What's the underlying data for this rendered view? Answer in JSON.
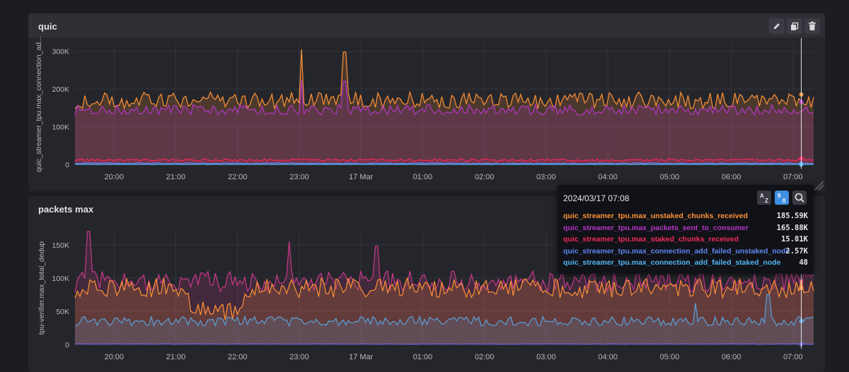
{
  "panels": [
    {
      "title": "quic",
      "ylabel": "quic_streamer_tpu.max_connection_ad...",
      "buttons": [
        {
          "name": "edit-button",
          "icon": "pencil-icon"
        },
        {
          "name": "duplicate-button",
          "icon": "copy-icon"
        },
        {
          "name": "delete-button",
          "icon": "trash-icon"
        }
      ]
    },
    {
      "title": "packets max",
      "ylabel": "tpu-verifier.max_total_dedup"
    }
  ],
  "tooltip": {
    "time": "2024/03/17 07:08",
    "sort_az_label": "AZ",
    "sort_num_label": "90",
    "rows": [
      {
        "name": "quic_streamer_tpu.max_unstaked_chunks_received",
        "value": "185.59K",
        "color": "#ff9236"
      },
      {
        "name": "quic_streamer_tpu.max_packets_sent_to_consumer",
        "value": "165.88K",
        "color": "#b536c7"
      },
      {
        "name": "quic_streamer_tpu.max_staked_chunks_received",
        "value": "15.81K",
        "color": "#f2295a"
      },
      {
        "name": "quic_streamer_tpu.max_connection_add_failed_unstaked_node",
        "value": "2.57K",
        "color": "#5f86f0"
      },
      {
        "name": "quic_streamer_tpu.max_connection_add_failed_staked_node",
        "value": "48",
        "color": "#52b6f5"
      }
    ]
  },
  "chart_data": [
    {
      "type": "area",
      "x_ticks": [
        "20:00",
        "21:00",
        "22:00",
        "23:00",
        "17 Mar",
        "01:00",
        "02:00",
        "03:00",
        "04:00",
        "05:00",
        "06:00",
        "07:00"
      ],
      "x_range": [
        "2024/03/16 19:22",
        "2024/03/17 07:20"
      ],
      "y_ticks": [
        "0",
        "100K",
        "200K",
        "300K"
      ],
      "ylim": [
        0,
        320000
      ],
      "ylabel": "quic_streamer_tpu.max_connection_ad...",
      "grid": true,
      "hover_time": "2024/03/17 07:08",
      "series": [
        {
          "name": "quic_streamer_tpu.max_unstaked_chunks_received",
          "color": "#ff9236",
          "base": 170000,
          "noise": 22000,
          "spikes": [
            [
              "23:02",
              305000
            ],
            [
              "23:45",
              298000
            ]
          ],
          "hover_value": 185590
        },
        {
          "name": "quic_streamer_tpu.max_packets_sent_to_consumer",
          "color": "#b536c7",
          "base": 145000,
          "noise": 14000,
          "spikes": [
            [
              "23:02",
              225000
            ],
            [
              "23:45",
              220000
            ]
          ],
          "hover_value": 165880
        },
        {
          "name": "quic_streamer_tpu.max_staked_chunks_received",
          "color": "#f2295a",
          "base": 12000,
          "noise": 3000,
          "hover_value": 15810
        },
        {
          "name": "quic_streamer_tpu.max_connection_add_failed_unstaked_node",
          "color": "#5f86f0",
          "base": 3000,
          "noise": 1500,
          "hover_value": 2570
        },
        {
          "name": "quic_streamer_tpu.max_connection_add_failed_staked_node",
          "color": "#52b6f5",
          "base": 200,
          "noise": 150,
          "hover_value": 48
        }
      ]
    },
    {
      "type": "area",
      "x_ticks": [
        "20:00",
        "21:00",
        "22:00",
        "23:00",
        "17 Mar",
        "01:00",
        "02:00",
        "03:00",
        "04:00",
        "05:00",
        "06:00",
        "07:00"
      ],
      "x_range": [
        "2024/03/16 19:22",
        "2024/03/17 07:20"
      ],
      "y_ticks": [
        "0",
        "50K",
        "100K",
        "150K"
      ],
      "ylim": [
        0,
        170000
      ],
      "ylabel": "tpu-verifier.max_total_dedup",
      "grid": true,
      "hover_time": "2024/03/17 07:08",
      "series": [
        {
          "color": "#c7398a",
          "base": 95000,
          "noise": 16000,
          "spikes": [
            [
              "19:35",
              170000
            ],
            [
              "22:50",
              155000
            ],
            [
              "00:15",
              148000
            ]
          ]
        },
        {
          "color": "#ff9236",
          "base": 85000,
          "noise": 15000,
          "dip": [
            "21:00",
            "22:20",
            45000
          ]
        },
        {
          "color": "#5aa2d8",
          "base": 35000,
          "noise": 7000,
          "spikes": [
            [
              "06:35",
              75000
            ],
            [
              "05:25",
              62000
            ]
          ]
        },
        {
          "color": "#6e62e0",
          "base": 600,
          "noise": 400
        }
      ]
    }
  ]
}
